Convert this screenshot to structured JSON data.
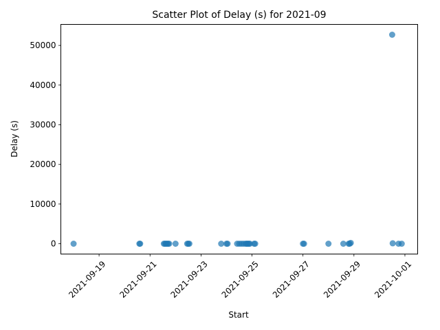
{
  "chart_data": {
    "type": "scatter",
    "title": "Scatter Plot of Delay (s) for 2021-09",
    "xlabel": "Start",
    "ylabel": "Delay (s)",
    "x_is_date": true,
    "xlim": [
      "2021-09-17T12:00",
      "2021-10-01T12:00"
    ],
    "ylim": [
      -2600,
      55300
    ],
    "x_ticks": [
      "2021-09-19",
      "2021-09-21",
      "2021-09-23",
      "2021-09-25",
      "2021-09-27",
      "2021-09-29",
      "2021-10-01"
    ],
    "y_ticks": [
      0,
      10000,
      20000,
      30000,
      40000,
      50000
    ],
    "y_tick_labels": [
      "0",
      "10000",
      "20000",
      "30000",
      "40000",
      "50000"
    ],
    "marker_color": "#1f77b4",
    "marker_alpha": 0.7,
    "grid": false,
    "points": [
      {
        "x": "2021-09-18T00:00",
        "y": 0
      },
      {
        "x": "2021-09-20T14:00",
        "y": 0
      },
      {
        "x": "2021-09-20T14:40",
        "y": 0
      },
      {
        "x": "2021-09-21T13:00",
        "y": 0
      },
      {
        "x": "2021-09-21T14:00",
        "y": 0
      },
      {
        "x": "2021-09-21T15:00",
        "y": 0
      },
      {
        "x": "2021-09-21T16:00",
        "y": 0
      },
      {
        "x": "2021-09-21T17:00",
        "y": 0
      },
      {
        "x": "2021-09-21T18:00",
        "y": 0
      },
      {
        "x": "2021-09-22T00:00",
        "y": 0
      },
      {
        "x": "2021-09-22T11:00",
        "y": 0
      },
      {
        "x": "2021-09-22T12:00",
        "y": 0
      },
      {
        "x": "2021-09-22T13:00",
        "y": 0
      },
      {
        "x": "2021-09-23T19:00",
        "y": 0
      },
      {
        "x": "2021-09-24T00:00",
        "y": 0
      },
      {
        "x": "2021-09-24T01:00",
        "y": 0
      },
      {
        "x": "2021-09-24T10:00",
        "y": 0
      },
      {
        "x": "2021-09-24T12:00",
        "y": 0
      },
      {
        "x": "2021-09-24T14:00",
        "y": 0
      },
      {
        "x": "2021-09-24T16:00",
        "y": 0
      },
      {
        "x": "2021-09-24T18:00",
        "y": 0
      },
      {
        "x": "2021-09-24T19:00",
        "y": 0
      },
      {
        "x": "2021-09-24T20:00",
        "y": 0
      },
      {
        "x": "2021-09-24T21:00",
        "y": 0
      },
      {
        "x": "2021-09-24T22:00",
        "y": 0
      },
      {
        "x": "2021-09-25T02:00",
        "y": 0
      },
      {
        "x": "2021-09-25T03:00",
        "y": 0
      },
      {
        "x": "2021-09-27T00:00",
        "y": 0
      },
      {
        "x": "2021-09-27T01:00",
        "y": 0
      },
      {
        "x": "2021-09-28T00:00",
        "y": 0
      },
      {
        "x": "2021-09-28T14:00",
        "y": 0
      },
      {
        "x": "2021-09-28T19:00",
        "y": 0
      },
      {
        "x": "2021-09-28T20:00",
        "y": 0
      },
      {
        "x": "2021-09-28T21:00",
        "y": 200
      },
      {
        "x": "2021-09-30T12:00",
        "y": 52700
      },
      {
        "x": "2021-09-30T12:30",
        "y": 100
      },
      {
        "x": "2021-09-30T18:00",
        "y": 0
      },
      {
        "x": "2021-09-30T21:00",
        "y": 0
      }
    ]
  }
}
